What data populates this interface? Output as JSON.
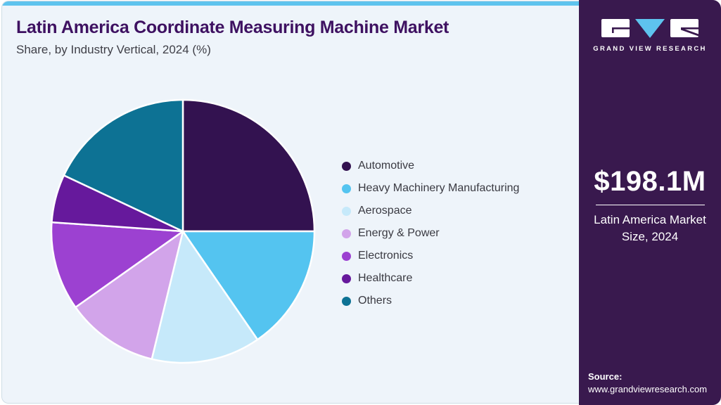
{
  "page": {
    "title": "Latin America Coordinate Measuring Machine Market",
    "subtitle": "Share, by Industry Vertical, 2024 (%)"
  },
  "brand": {
    "accent_blue": "#5ec3ee",
    "sidebar_purple": "#39194e"
  },
  "sidebar": {
    "brand_name": "GRAND VIEW RESEARCH",
    "market_size_value": "$198.1M",
    "market_size_label": "Latin America Market Size, 2024",
    "source_label": "Source:",
    "source_url": "www.grandviewresearch.com"
  },
  "chart_data": {
    "type": "pie",
    "title": "Latin America Coordinate Measuring Machine Market Share, by Industry Vertical, 2024 (%)",
    "units": "percent",
    "start_angle_deg": 0,
    "direction": "clockwise",
    "legend_position": "right",
    "slice_gap_color": "#ffffff",
    "slices": [
      {
        "label": "Automotive",
        "value": 25.0,
        "color": "#331250"
      },
      {
        "label": "Heavy Machinery Manufacturing",
        "value": 15.4,
        "color": "#54c4f0"
      },
      {
        "label": "Aerospace",
        "value": 13.4,
        "color": "#c6e9fa"
      },
      {
        "label": "Energy & Power",
        "value": 11.4,
        "color": "#d2a4ea"
      },
      {
        "label": "Electronics",
        "value": 10.9,
        "color": "#9c41d1"
      },
      {
        "label": "Healthcare",
        "value": 5.9,
        "color": "#66199c"
      },
      {
        "label": "Others",
        "value": 18.0,
        "color": "#0d7294"
      }
    ]
  }
}
